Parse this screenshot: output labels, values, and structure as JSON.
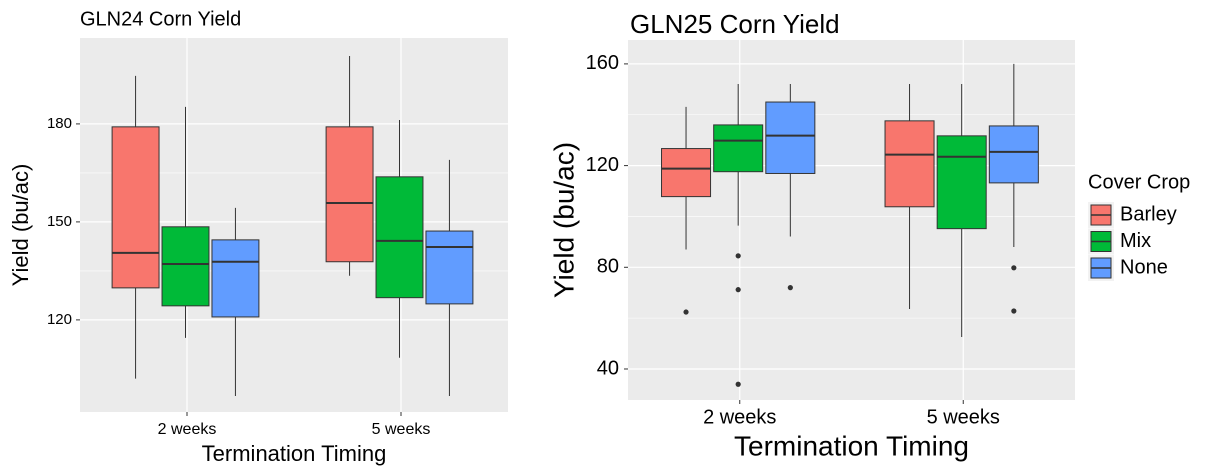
{
  "chart_data": [
    {
      "type": "boxplot",
      "title": "GLN24 Corn Yield",
      "x_label": "Termination Timing",
      "y_label": "Yield (bu/ac)",
      "categories": [
        "2 weeks",
        "5 weeks"
      ],
      "ylim": [
        91.8,
        206.3
      ],
      "yticks": [
        120,
        150,
        180
      ],
      "grid": true,
      "series": [
        {
          "color": "#F8766D",
          "boxes": [
            {
              "min": 102,
              "q1": 129.8,
              "median": 140.5,
              "q3": 179.1,
              "max": 194.7,
              "outliers": []
            },
            {
              "min": 133.5,
              "q1": 137.8,
              "median": 155.8,
              "q3": 179.1,
              "max": 200.8,
              "outliers": []
            }
          ]
        },
        {
          "color": "#00BA38",
          "boxes": [
            {
              "min": 114.5,
              "q1": 124.3,
              "median": 137.1,
              "q3": 148.5,
              "max": 185.2,
              "outliers": []
            },
            {
              "min": 108.4,
              "q1": 126.8,
              "median": 144.2,
              "q3": 163.8,
              "max": 181.2,
              "outliers": []
            }
          ]
        },
        {
          "color": "#619CFF",
          "boxes": [
            {
              "min": 96.7,
              "q1": 120.9,
              "median": 137.8,
              "q3": 144.5,
              "max": 154.3,
              "outliers": []
            },
            {
              "min": 96.7,
              "q1": 124.9,
              "median": 142.3,
              "q3": 147.2,
              "max": 169,
              "outliers": []
            }
          ]
        }
      ]
    },
    {
      "type": "boxplot",
      "title": "GLN25 Corn Yield",
      "x_label": "Termination Timing",
      "y_label": "Yield (bu/ac)",
      "categories": [
        "2 weeks",
        "5 weeks"
      ],
      "ylim": [
        27.8,
        169.4
      ],
      "yticks": [
        40,
        80,
        120,
        160
      ],
      "grid": true,
      "legend_title": "Cover Crop",
      "legend": "right",
      "series": [
        {
          "name": "Barley",
          "color": "#F8766D",
          "boxes": [
            {
              "min": 87,
              "q1": 107.8,
              "median": 118.8,
              "q3": 126.7,
              "max": 143.1,
              "outliers": [
                62.4
              ]
            },
            {
              "min": 63.6,
              "q1": 103.8,
              "median": 124.3,
              "q3": 137.6,
              "max": 152.1,
              "outliers": []
            }
          ]
        },
        {
          "name": "Mix",
          "color": "#00BA38",
          "boxes": [
            {
              "min": 96.4,
              "q1": 117.6,
              "median": 129.8,
              "q3": 136,
              "max": 152.1,
              "outliers": [
                84.5,
                71.2,
                34
              ]
            },
            {
              "min": 52.6,
              "q1": 95.2,
              "median": 123.5,
              "q3": 131.7,
              "max": 152.1,
              "outliers": []
            }
          ]
        },
        {
          "name": "None",
          "color": "#619CFF",
          "boxes": [
            {
              "min": 92.1,
              "q1": 116.9,
              "median": 131.8,
              "q3": 145,
              "max": 152.1,
              "outliers": [
                72
              ]
            },
            {
              "min": 88,
              "q1": 113.2,
              "median": 125.4,
              "q3": 135.6,
              "max": 160,
              "outliers": [
                79.8,
                62.8
              ]
            }
          ]
        }
      ]
    }
  ]
}
